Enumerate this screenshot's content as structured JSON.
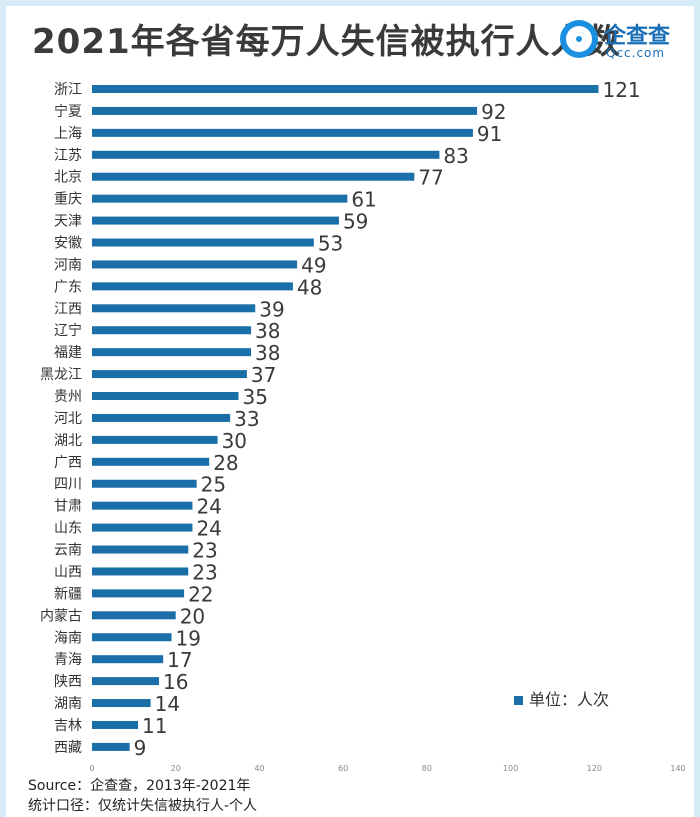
{
  "title": "2021年各省每万人失信被执行人人数",
  "logo": {
    "cn": "企查查",
    "en": "Qcc.com"
  },
  "legend": "单位：人次",
  "source_line1": "Source：企查查，2013年-2021年",
  "source_line2": "统计口径：仅统计失信被执行人-个人",
  "colors": {
    "bar": "#1a6fa8",
    "label": "#333333",
    "tick": "#888888"
  },
  "chart_data": {
    "type": "bar",
    "orientation": "horizontal",
    "title": "2021年各省每万人失信被执行人人数",
    "categories": [
      "浙江",
      "宁夏",
      "上海",
      "江苏",
      "北京",
      "重庆",
      "天津",
      "安徽",
      "河南",
      "广东",
      "江西",
      "辽宁",
      "福建",
      "黑龙江",
      "贵州",
      "河北",
      "湖北",
      "广西",
      "四川",
      "甘肃",
      "山东",
      "云南",
      "山西",
      "新疆",
      "内蒙古",
      "海南",
      "青海",
      "陕西",
      "湖南",
      "吉林",
      "西藏"
    ],
    "values": [
      121,
      92,
      91,
      83,
      77,
      61,
      59,
      53,
      49,
      48,
      39,
      38,
      38,
      37,
      35,
      33,
      30,
      28,
      25,
      24,
      24,
      23,
      23,
      22,
      20,
      19,
      17,
      16,
      14,
      11,
      9
    ],
    "xlim": [
      0,
      140
    ],
    "xticks": [
      0,
      20,
      40,
      60,
      80,
      100,
      120,
      140
    ],
    "grid": false,
    "legend_position": "bottom-right",
    "unit": "单位：人次"
  }
}
